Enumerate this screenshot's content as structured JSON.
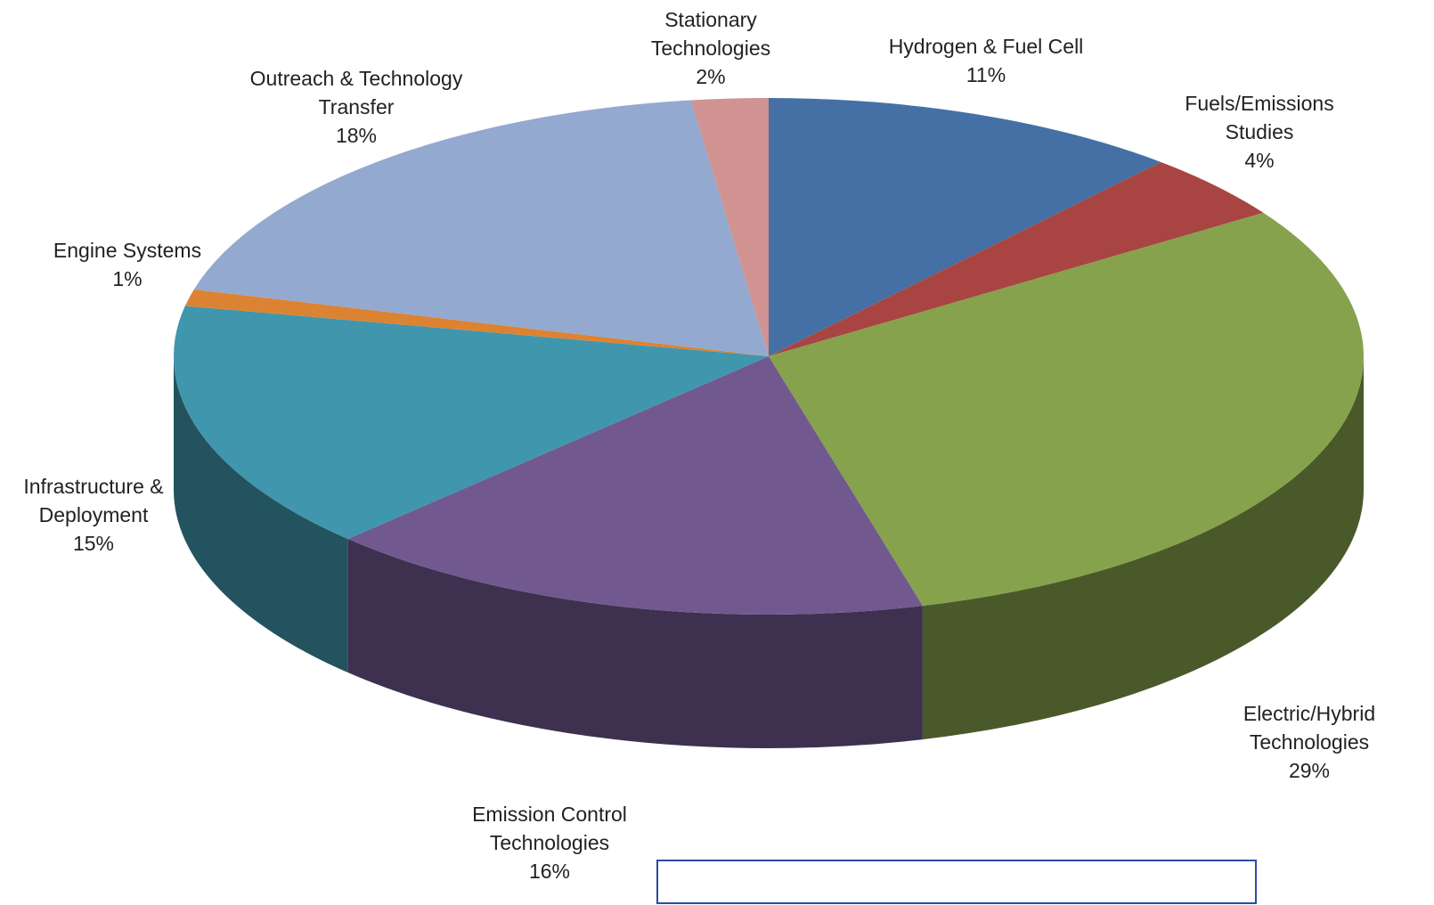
{
  "chart_data": {
    "type": "pie3d",
    "categories": [
      "Hydrogen & Fuel Cell",
      "Fuels/Emissions Studies",
      "Electric/Hybrid Technologies",
      "Emission Control Technologies",
      "Infrastructure & Deployment",
      "Engine Systems",
      "Outreach & Technology Transfer",
      "Stationary Technologies"
    ],
    "values": [
      11,
      4,
      29,
      16,
      15,
      1,
      18,
      2
    ],
    "value_labels": [
      "11%",
      "4%",
      "29%",
      "16%",
      "15%",
      "1%",
      "18%",
      "2%"
    ],
    "colors": [
      "#4470a5",
      "#a84542",
      "#86a24d",
      "#715990",
      "#3f96ad",
      "#dc8333",
      "#93a9cf",
      "#d09392"
    ]
  }
}
